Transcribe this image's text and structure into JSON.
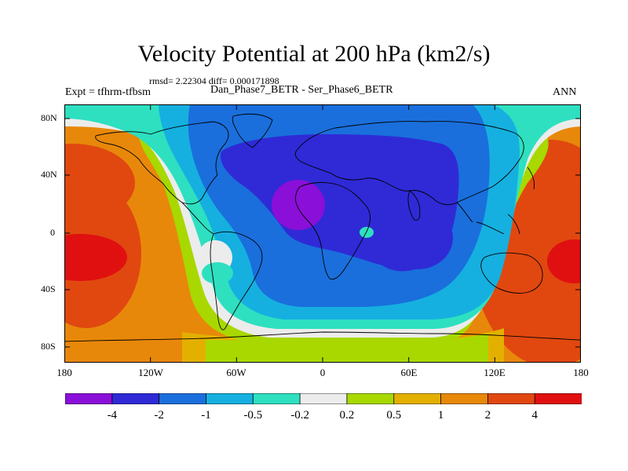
{
  "title": "Velocity Potential at 200 hPa (km2/s)",
  "stats_line": "rmsd= 2.22304 diff= 0.000171898",
  "expt_label": "Expt = tfhrm-tfbsm",
  "cases_label": "Dan_Phase7_BETR - Ser_Phase6_BETR",
  "season": "ANN",
  "lat_labels": [
    "80N",
    "40N",
    "0",
    "40S",
    "80S"
  ],
  "lon_labels": [
    "180",
    "120W",
    "60W",
    "0",
    "60E",
    "120E",
    "180"
  ],
  "colorbar": {
    "colors": [
      "#8a0fd8",
      "#2f2ad6",
      "#1a6fdc",
      "#15b0e0",
      "#2ee0c0",
      "#ececec",
      "#a8d800",
      "#e3b000",
      "#e8880a",
      "#e04810",
      "#e01010"
    ],
    "labels": [
      "-4",
      "-2",
      "-1",
      "-0.5",
      "-0.2",
      "0.2",
      "0.5",
      "1",
      "2",
      "4"
    ]
  },
  "map_colors": {
    "ocean_warm": "#e8880a",
    "ocean_hot": "#e04810",
    "peak": "#e01010",
    "neutral": "#ececec",
    "positive_low": "#a8d800",
    "positive_mid": "#e3b000",
    "neg_weak": "#2ee0c0",
    "neg_mod": "#15b0e0",
    "neg_strong": "#1a6fdc",
    "neg_deep": "#2f2ad6",
    "neg_min": "#8a0fd8"
  }
}
